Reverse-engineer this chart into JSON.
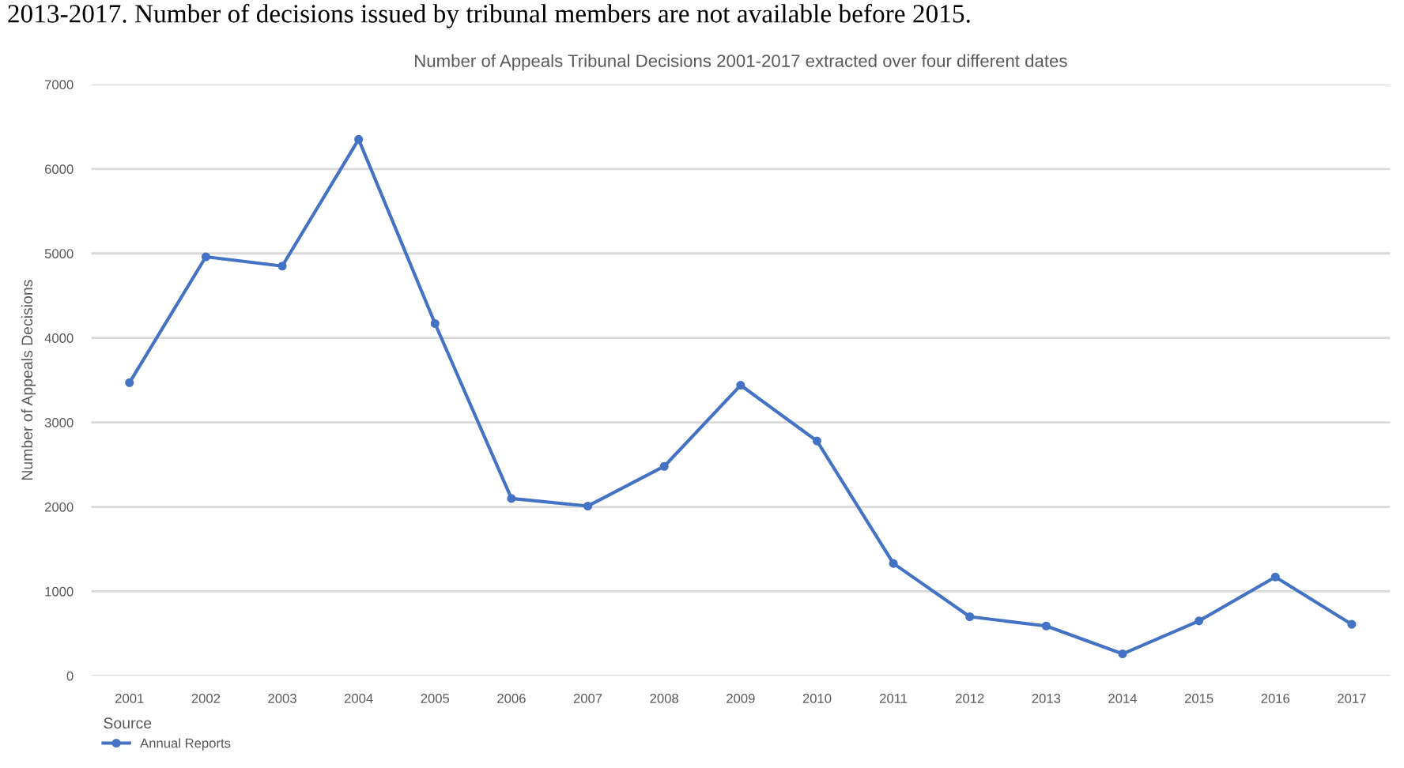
{
  "chart_data": {
    "type": "line",
    "title": "Number of Appeals Tribunal Decisions 2001-2017 extracted over four different dates",
    "ylabel": "Number of Appeals Decisions",
    "legend_title": "Source",
    "annotations": [
      "2013-2017. Number of decisions issued by tribunal members are not available before 2015."
    ],
    "categories": [
      "2001",
      "2002",
      "2003",
      "2004",
      "2005",
      "2006",
      "2007",
      "2008",
      "2009",
      "2010",
      "2011",
      "2012",
      "2013",
      "2014",
      "2015",
      "2016",
      "2017"
    ],
    "series": [
      {
        "name": "Annual Reports",
        "color": "#4472c4",
        "values": [
          3470,
          4960,
          4850,
          6350,
          4170,
          2100,
          2010,
          2480,
          3440,
          2780,
          1330,
          700,
          590,
          260,
          650,
          1170,
          610
        ]
      }
    ],
    "ylim": [
      0,
      7000
    ],
    "yticks": [
      0,
      1000,
      2000,
      3000,
      4000,
      5000,
      6000,
      7000
    ],
    "grid": "y",
    "legend": "bottom left",
    "marker": "circle",
    "line_style": "solid"
  }
}
